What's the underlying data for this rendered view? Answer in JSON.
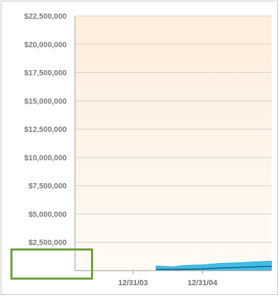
{
  "chart_data": {
    "type": "area",
    "title": "",
    "xlabel": "",
    "ylabel": "",
    "ylim": [
      0,
      22500000
    ],
    "y_ticks": [
      {
        "value": 2500000,
        "label": "$2,500,000"
      },
      {
        "value": 5000000,
        "label": "$5,000,000"
      },
      {
        "value": 7500000,
        "label": "$7,500,000"
      },
      {
        "value": 10000000,
        "label": "$10,000,000"
      },
      {
        "value": 12500000,
        "label": "$12,500,000"
      },
      {
        "value": 15000000,
        "label": "$15,000,000"
      },
      {
        "value": 17500000,
        "label": "$17,500,000"
      },
      {
        "value": 20000000,
        "label": "$20,000,000"
      },
      {
        "value": 22500000,
        "label": "$22,500,000"
      }
    ],
    "x_ticks": [
      "12/31/03",
      "12/31/04"
    ],
    "grid": true,
    "band_color": "#29b6e6",
    "line_color": "#1f5f8b",
    "highlighted_tick": "$2,500,000",
    "highlight_color": "#6aa33a",
    "series": [
      {
        "type": "band",
        "x": [
          "2004-04-30",
          "2004-07-31",
          "2004-09-30",
          "2004-12-31",
          "2005-03-31",
          "2005-06-30",
          "2005-09-30",
          "2005-12-31"
        ],
        "upper": [
          420000,
          350000,
          480000,
          520000,
          650000,
          700000,
          780000,
          850000
        ],
        "lower": [
          30000,
          0,
          0,
          0,
          0,
          0,
          0,
          0
        ]
      },
      {
        "type": "line",
        "x": [
          "2004-04-30",
          "2004-07-31",
          "2004-09-30",
          "2004-12-31",
          "2005-03-31",
          "2005-06-30",
          "2005-09-30",
          "2005-12-31"
        ],
        "values": [
          120000,
          100000,
          110000,
          150000,
          230000,
          280000,
          330000,
          380000
        ]
      }
    ]
  }
}
